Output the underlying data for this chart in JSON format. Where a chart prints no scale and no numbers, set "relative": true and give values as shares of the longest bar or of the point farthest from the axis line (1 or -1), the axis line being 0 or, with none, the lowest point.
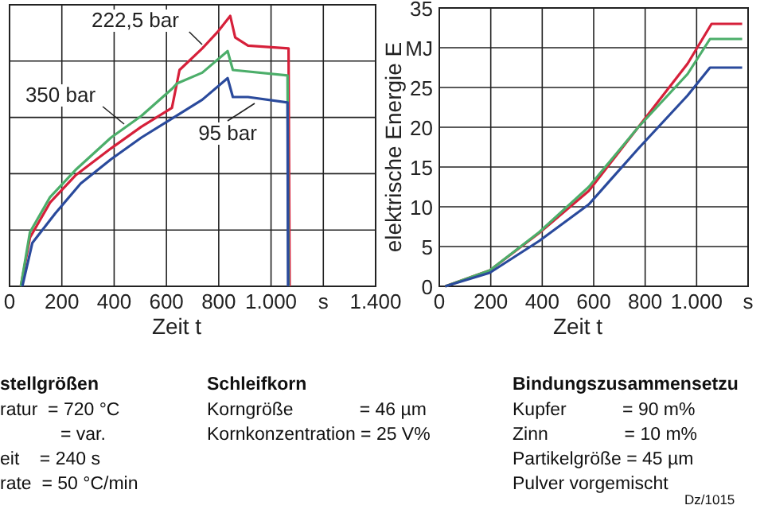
{
  "chart_data": [
    {
      "type": "line",
      "relative": true,
      "xlabel": "Zeit t",
      "xlim": [
        0,
        1400
      ],
      "xticks": [
        0,
        200,
        400,
        600,
        800,
        {
          "value": 1000,
          "label": "1.000"
        },
        {
          "value": 1200,
          "label": "s"
        },
        {
          "value": 1400,
          "label": "1.400"
        }
      ],
      "grid": true,
      "series": [
        {
          "name": "222,5 bar",
          "color": "#d6203a",
          "x": [
            43,
            78,
            155,
            252,
            388,
            504,
            621,
            650,
            737,
            795,
            844,
            863,
            912,
            1067,
            1071
          ],
          "values": [
            0,
            0.18,
            0.31,
            0.41,
            0.51,
            0.59,
            0.66,
            0.8,
            0.88,
            0.94,
            1,
            0.92,
            0.89,
            0.88,
            0
          ]
        },
        {
          "name": "350 bar",
          "color": "#4cae6a",
          "x": [
            43,
            78,
            155,
            252,
            388,
            504,
            621,
            640,
            737,
            834,
            854,
            1063,
            1067
          ],
          "values": [
            0,
            0.2,
            0.33,
            0.43,
            0.55,
            0.63,
            0.73,
            0.75,
            0.79,
            0.87,
            0.8,
            0.78,
            0
          ]
        },
        {
          "name": "95 bar",
          "color": "#2a4a9c",
          "x": [
            49,
            87,
            175,
            272,
            388,
            504,
            621,
            737,
            834,
            854,
            912,
            1063,
            1065
          ],
          "values": [
            0,
            0.16,
            0.27,
            0.38,
            0.47,
            0.55,
            0.62,
            0.69,
            0.77,
            0.7,
            0.7,
            0.68,
            0
          ]
        }
      ]
    },
    {
      "type": "line",
      "xlabel": "Zeit t",
      "ylabel": "elektrische Energie E",
      "xlim": [
        0,
        1200
      ],
      "xticks": [
        0,
        200,
        400,
        600,
        800,
        {
          "value": 1000,
          "label": "1.000"
        },
        {
          "value": 1200,
          "label": "s"
        }
      ],
      "ylim": [
        0,
        35
      ],
      "yticks": [
        0,
        5,
        10,
        15,
        20,
        25,
        {
          "value": 30,
          "label": "MJ"
        },
        35
      ],
      "grid": true,
      "series": [
        {
          "color": "#d6203a",
          "x": [
            23,
            196,
            388,
            581,
            773,
            965,
            1058,
            1177
          ],
          "values": [
            0,
            2,
            6.7,
            12,
            20,
            28,
            33,
            33
          ]
        },
        {
          "color": "#4cae6a",
          "x": [
            23,
            196,
            388,
            581,
            773,
            965,
            1052,
            1177
          ],
          "values": [
            0,
            2,
            6.8,
            12.5,
            20,
            26.7,
            31.1,
            31.1
          ]
        },
        {
          "color": "#2a4a9c",
          "x": [
            23,
            196,
            388,
            581,
            773,
            965,
            1052,
            1177
          ],
          "values": [
            0,
            1.7,
            5.7,
            10.3,
            17.3,
            24,
            27.5,
            27.5
          ]
        }
      ]
    },
    {
      "type": "other",
      "title": "stellgrößen",
      "annotations": [
        "ratur  = 720 °C",
        "= var.",
        "eit    = 240 s",
        "rate  = 50 °C/min"
      ]
    },
    {
      "type": "other",
      "title": "Schleifkorn",
      "annotations": [
        "Korngröße             = 46 µm",
        "Kornkonzentration = 25 V%"
      ]
    },
    {
      "type": "other",
      "title": "Bindungszusammensetzu",
      "annotations": [
        "Kupfer           = 90 m%",
        "Zinn               = 10 m%",
        "Partikelgröße = 45 µm",
        "Pulver vorgemischt",
        "Dz/1015"
      ]
    }
  ]
}
